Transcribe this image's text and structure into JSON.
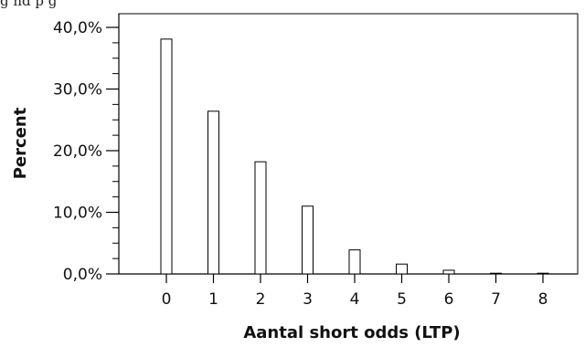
{
  "caption_fragment": "g           nd                             p                                 g",
  "chart_data": {
    "type": "bar",
    "title": "",
    "xlabel": "Aantal short odds (LTP)",
    "ylabel": "Percent",
    "categories": [
      "0",
      "1",
      "2",
      "3",
      "4",
      "5",
      "6",
      "7",
      "8"
    ],
    "values": [
      38.1,
      26.4,
      18.2,
      11.0,
      3.9,
      1.6,
      0.6,
      0.1,
      0.1
    ],
    "ylim": [
      0,
      40
    ],
    "yticks": [
      0,
      10,
      20,
      30,
      40
    ],
    "ytick_labels": [
      "0,0%",
      "10,0%",
      "20,0%",
      "30,0%",
      "40,0%"
    ],
    "grid": false,
    "bar_fill": "#ffffff",
    "bar_stroke": "#000000"
  }
}
